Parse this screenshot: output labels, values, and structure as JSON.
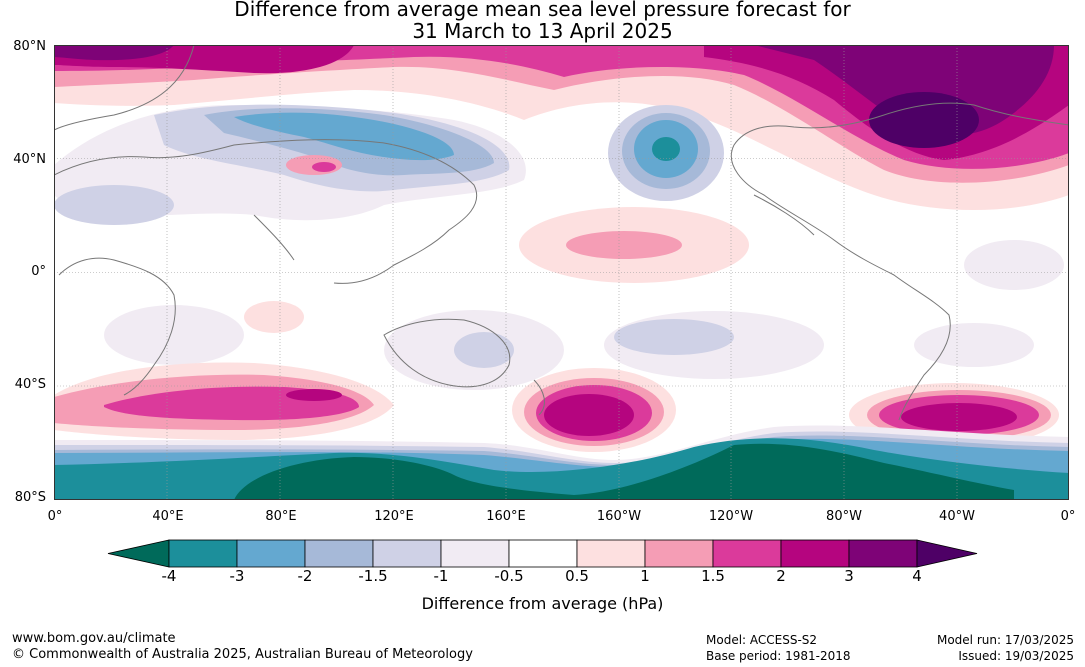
{
  "title_line1": "Difference from average mean sea level pressure forecast for",
  "title_line2": "31 March to 13 April 2025",
  "lat_labels": [
    "80°N",
    "40°N",
    "0°",
    "40°S",
    "80°S"
  ],
  "lon_labels": [
    "0°",
    "40°E",
    "80°E",
    "120°E",
    "160°E",
    "160°W",
    "120°W",
    "80°W",
    "40°W",
    "0°"
  ],
  "colorbar": {
    "title": "Difference from average (hPa)",
    "ticks": [
      "-4",
      "-3",
      "-2",
      "-1.5",
      "-1",
      "-0.5",
      "0.5",
      "1",
      "1.5",
      "2",
      "3",
      "4"
    ],
    "colors": [
      "#006a5a",
      "#1c8f9b",
      "#64a8d0",
      "#a6b9d8",
      "#cfd1e6",
      "#f1ebf3",
      "#ffffff",
      "#fde0e0",
      "#f59db5",
      "#db3a9b",
      "#b5057f",
      "#7e0377",
      "#4e0066"
    ]
  },
  "footer": {
    "website": "www.bom.gov.au/climate",
    "copyright": "© Commonwealth of Australia 2025, Australian Bureau of Meteorology",
    "model": "Model: ACCESS-S2",
    "base_period": "Base period: 1981-2018",
    "model_run": "Model run: 17/03/2025",
    "issued": "Issued: 19/03/2025"
  }
}
